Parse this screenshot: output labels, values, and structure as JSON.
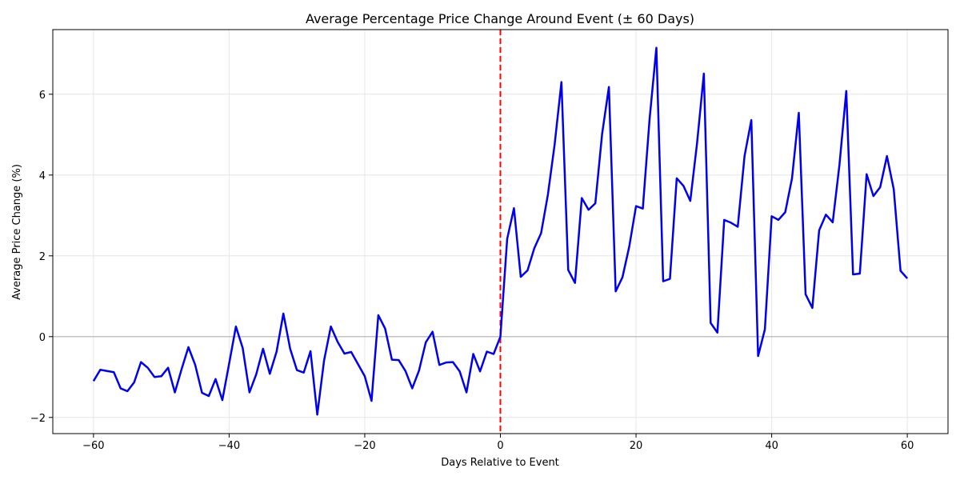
{
  "chart_data": {
    "type": "line",
    "title": "Average Percentage Price Change Around Event (± 60 Days)",
    "xlabel": "Days Relative to Event",
    "ylabel": "Average Price Change (%)",
    "xlim": [
      -66,
      66
    ],
    "ylim": [
      -2.4,
      7.6
    ],
    "xticks": [
      -60,
      -40,
      -20,
      0,
      20,
      40,
      60
    ],
    "yticks": [
      -2,
      0,
      2,
      4,
      6
    ],
    "grid": true,
    "event_line_x": 0,
    "zero_line_y": 0,
    "series": [
      {
        "color": "#0000ee",
        "x": [
          -60,
          -59,
          -58,
          -57,
          -56,
          -55,
          -54,
          -53,
          -52,
          -51,
          -50,
          -49,
          -48,
          -47,
          -46,
          -45,
          -44,
          -43,
          -42,
          -41,
          -40,
          -39,
          -38,
          -37,
          -36,
          -35,
          -34,
          -33,
          -32,
          -31,
          -30,
          -29,
          -28,
          -27,
          -26,
          -25,
          -24,
          -23,
          -22,
          -21,
          -20,
          -19,
          -18,
          -17,
          -16,
          -15,
          -14,
          -13,
          -12,
          -11,
          -10,
          -9,
          -8,
          -7,
          -6,
          -5,
          -4,
          -3,
          -2,
          -1,
          0,
          1,
          2,
          3,
          4,
          5,
          6,
          7,
          8,
          9,
          10,
          11,
          12,
          13,
          14,
          15,
          16,
          17,
          18,
          19,
          20,
          21,
          22,
          23,
          24,
          25,
          26,
          27,
          28,
          29,
          30,
          31,
          32,
          33,
          34,
          35,
          36,
          37,
          38,
          39,
          40,
          41,
          42,
          43,
          44,
          45,
          46,
          47,
          48,
          49,
          50,
          51,
          52,
          53,
          54,
          55,
          56,
          57,
          58,
          59,
          60
        ],
        "values": [
          -1.1,
          -0.82,
          -0.85,
          -0.88,
          -1.28,
          -1.35,
          -1.13,
          -0.63,
          -0.77,
          -1.0,
          -0.98,
          -0.77,
          -1.38,
          -0.8,
          -0.26,
          -0.7,
          -1.39,
          -1.47,
          -1.05,
          -1.57,
          -0.67,
          0.25,
          -0.28,
          -1.38,
          -0.93,
          -0.3,
          -0.92,
          -0.37,
          0.57,
          -0.3,
          -0.83,
          -0.89,
          -0.36,
          -1.93,
          -0.59,
          0.25,
          -0.13,
          -0.42,
          -0.38,
          -0.68,
          -0.98,
          -1.59,
          0.53,
          0.2,
          -0.57,
          -0.58,
          -0.85,
          -1.28,
          -0.84,
          -0.14,
          0.12,
          -0.7,
          -0.64,
          -0.63,
          -0.86,
          -1.38,
          -0.43,
          -0.86,
          -0.37,
          -0.43,
          0.0,
          2.42,
          3.18,
          1.48,
          1.64,
          2.19,
          2.56,
          3.51,
          4.76,
          6.3,
          1.65,
          1.33,
          3.43,
          3.14,
          3.3,
          5.02,
          6.18,
          1.12,
          1.47,
          2.23,
          3.23,
          3.17,
          5.39,
          7.15,
          1.37,
          1.43,
          3.92,
          3.73,
          3.36,
          4.79,
          6.51,
          0.34,
          0.1,
          2.89,
          2.82,
          2.72,
          4.47,
          5.36,
          -0.48,
          0.18,
          2.98,
          2.89,
          3.08,
          3.92,
          5.54,
          1.05,
          0.71,
          2.63,
          3.02,
          2.83,
          4.26,
          6.08,
          1.54,
          1.56,
          4.02,
          3.48,
          3.7,
          4.47,
          3.65,
          1.63,
          1.44
        ]
      }
    ]
  }
}
